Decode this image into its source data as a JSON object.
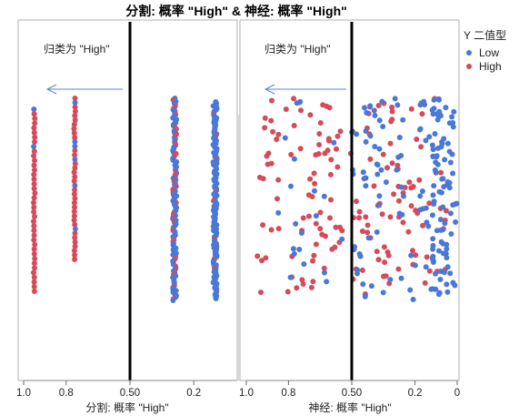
{
  "chart_data": [
    {
      "type": "scatter",
      "title": "分割: 概率 \"High\"",
      "xlabel": "分割: 概率 \"High\"",
      "xlim": [
        1.0,
        0
      ],
      "xticks": [
        "1.0",
        "0.8",
        "0.50",
        "0.2"
      ],
      "xtick_values": [
        1.0,
        0.8,
        0.5,
        0.2
      ],
      "threshold": 0.5,
      "annotation": "归类为 \"High\"",
      "columns": [
        {
          "x": 0.95,
          "counts": {
            "Low": 2,
            "High": 38
          }
        },
        {
          "x": 0.76,
          "counts": {
            "Low": 6,
            "High": 32
          }
        },
        {
          "x": 0.29,
          "counts": {
            "Low": 90,
            "High": 35
          }
        },
        {
          "x": 0.1,
          "counts": {
            "Low": 140,
            "High": 8
          }
        }
      ]
    },
    {
      "type": "scatter",
      "title": "神经: 概率 \"High\"",
      "xlabel": "神经: 概率 \"High\"",
      "xlim": [
        1.0,
        0
      ],
      "xticks": [
        "1.0",
        "0.8",
        "0.50",
        "0.2",
        "0"
      ],
      "xtick_values": [
        1.0,
        0.8,
        0.5,
        0.2,
        0
      ],
      "threshold": 0.5,
      "annotation": "归类为 \"High\"",
      "distribution": "points spread across 0.95–0.0, High mostly 0.95–0.3, Low mostly 0.45–0.0, dense near 0.05"
    }
  ],
  "title": "分割: 概率 \"High\" & 神经: 概率 \"High\"",
  "legend": {
    "title": "Y 二值型",
    "items": [
      {
        "label": "Low",
        "color": "#4a78d6"
      },
      {
        "label": "High",
        "color": "#d64a5a"
      }
    ]
  }
}
